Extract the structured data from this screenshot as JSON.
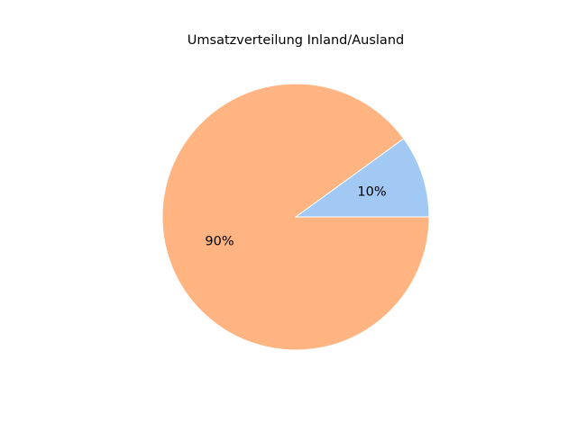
{
  "chart_data": {
    "type": "pie",
    "title": "Umsatzverteilung Inland/Ausland",
    "slices": [
      {
        "value": 10,
        "label": "10%",
        "color": "#a1c9f4"
      },
      {
        "value": 90,
        "label": "90%",
        "color": "#ffb482"
      }
    ],
    "start_angle_deg": 0,
    "direction": "counterclockwise",
    "edge_color": "#ffffff",
    "legend": "none"
  }
}
